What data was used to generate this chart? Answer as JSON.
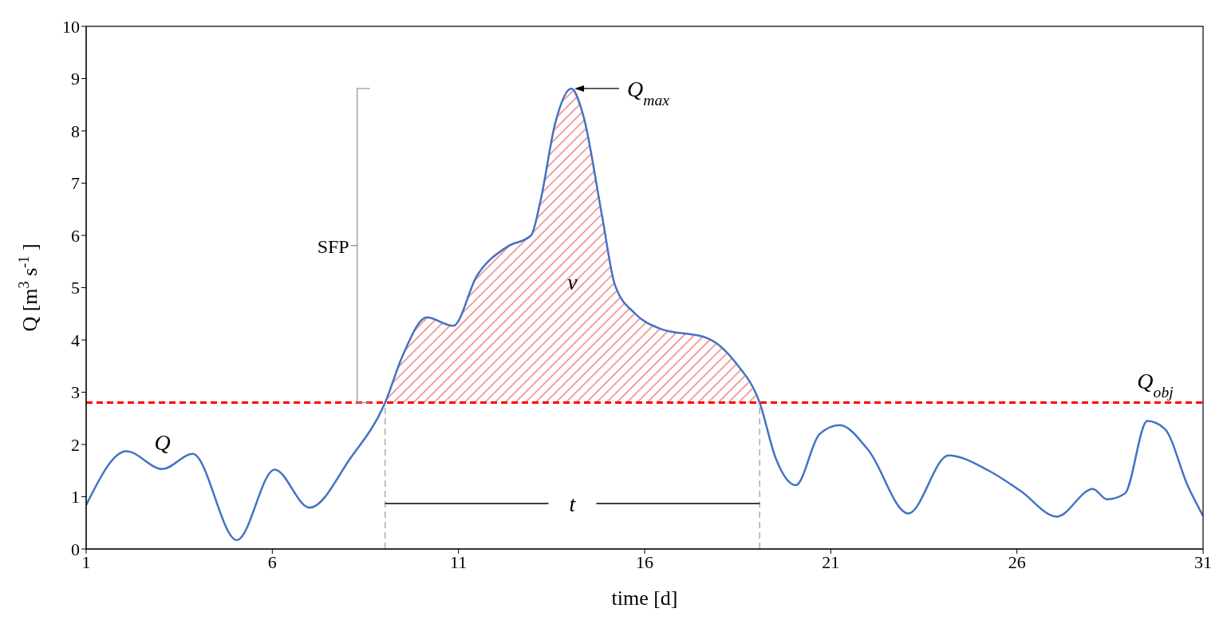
{
  "chart_data": {
    "type": "line",
    "xlabel": "time [d]",
    "ylabel": "Q [m$^{3}$ s$^{-1}$]",
    "xlim": [
      1,
      31
    ],
    "xticks": [
      1,
      6,
      11,
      16,
      21,
      26,
      31
    ],
    "ylim": [
      0,
      10
    ],
    "yticks": [
      0,
      1,
      2,
      3,
      4,
      5,
      6,
      7,
      8,
      9,
      10
    ],
    "marker": "none",
    "line_style": "solid",
    "series": [
      {
        "color": "#4472c4",
        "x": [
          1,
          2.08,
          3.05,
          3.86,
          5.05,
          6.06,
          7.0,
          8.1,
          9.03,
          9.5,
          10.15,
          10.86,
          11.49,
          12.3,
          12.95,
          13.2,
          13.6,
          14.03,
          14.35,
          14.85,
          15.2,
          15.75,
          16.4,
          17.7,
          18.45,
          19.09,
          19.52,
          20.06,
          20.7,
          21.24,
          22.0,
          23.08,
          24.16,
          25.24,
          26.1,
          27.07,
          28.04,
          28.42,
          28.9,
          29.5,
          29.97,
          30.6,
          31
        ],
        "values": [
          0.84,
          1.87,
          1.53,
          1.82,
          0.17,
          1.52,
          0.79,
          1.74,
          2.8,
          3.7,
          4.43,
          4.27,
          5.22,
          5.78,
          6.0,
          6.65,
          8.15,
          8.81,
          8.3,
          6.4,
          5.06,
          4.5,
          4.22,
          4.03,
          3.56,
          2.8,
          1.74,
          1.22,
          2.2,
          2.37,
          1.9,
          0.68,
          1.79,
          1.5,
          1.11,
          0.62,
          1.15,
          0.95,
          1.06,
          2.45,
          2.3,
          1.19,
          0.63
        ]
      },
      {
        "type": "area",
        "color": "#f4a0a0",
        "x": [
          9.03,
          9.5,
          10.15,
          10.86,
          11.49,
          12.3,
          12.95,
          13.2,
          13.6,
          14.03,
          14.35,
          14.85,
          15.2,
          15.75,
          16.4,
          17.7,
          18.45,
          19.09
        ],
        "values": [
          2.8,
          3.7,
          4.43,
          4.27,
          5.22,
          5.78,
          6.0,
          6.65,
          8.15,
          8.81,
          8.3,
          6.4,
          5.06,
          4.5,
          4.22,
          4.03,
          3.56,
          2.8
        ]
      }
    ],
    "ref_lines": [
      {
        "axis": "y",
        "value": 2.8,
        "label": "Q$_{obj}$",
        "color": "#ff0000",
        "line_style": "dashed"
      },
      {
        "axis": "x",
        "value": 9.03,
        "color": "#a0a0a0",
        "line_style": "dashed"
      },
      {
        "axis": "x",
        "value": 19.09,
        "color": "#a0a0a0",
        "line_style": "dashed"
      }
    ],
    "annotations": [
      "Q",
      {
        "text": "Q$_{max}$",
        "x": 14.03,
        "y": 8.81
      },
      "v",
      "SFP",
      {
        "text": "t",
        "x": 19.09,
        "y": 0.87
      }
    ]
  }
}
